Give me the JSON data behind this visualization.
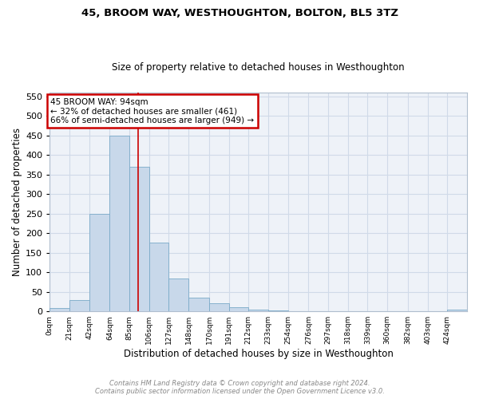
{
  "title1": "45, BROOM WAY, WESTHOUGHTON, BOLTON, BL5 3TZ",
  "title2": "Size of property relative to detached houses in Westhoughton",
  "xlabel": "Distribution of detached houses by size in Westhoughton",
  "ylabel": "Number of detached properties",
  "footer1": "Contains HM Land Registry data © Crown copyright and database right 2024.",
  "footer2": "Contains public sector information licensed under the Open Government Licence v3.0.",
  "bin_edges": [
    0,
    21,
    42,
    64,
    85,
    106,
    127,
    148,
    170,
    191,
    212,
    233,
    254,
    276,
    297,
    318,
    339,
    360,
    382,
    403,
    424,
    445
  ],
  "bar_heights": [
    8,
    30,
    250,
    450,
    370,
    175,
    85,
    35,
    20,
    10,
    5,
    2,
    0,
    0,
    0,
    0,
    0,
    0,
    0,
    0,
    5
  ],
  "bar_color": "#c8d8ea",
  "bar_edge_color": "#7aaac8",
  "grid_color": "#d0dae8",
  "bg_color": "#eef2f8",
  "property_size": 94,
  "red_line_color": "#cc0000",
  "ylim": [
    0,
    560
  ],
  "yticks": [
    0,
    50,
    100,
    150,
    200,
    250,
    300,
    350,
    400,
    450,
    500,
    550
  ],
  "annotation_text": "45 BROOM WAY: 94sqm\n← 32% of detached houses are smaller (461)\n66% of semi-detached houses are larger (949) →",
  "annotation_box_color": "#ffffff",
  "annotation_border_color": "#cc0000",
  "tick_labels": [
    "0sqm",
    "21sqm",
    "42sqm",
    "64sqm",
    "85sqm",
    "106sqm",
    "127sqm",
    "148sqm",
    "170sqm",
    "191sqm",
    "212sqm",
    "233sqm",
    "254sqm",
    "276sqm",
    "297sqm",
    "318sqm",
    "339sqm",
    "360sqm",
    "382sqm",
    "403sqm",
    "424sqm"
  ]
}
